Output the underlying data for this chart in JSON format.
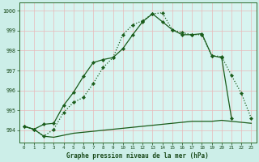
{
  "title": "Graphe pression niveau de la mer (hPa)",
  "background_color": "#cceee8",
  "plot_background": "#d8f4f0",
  "grid_color": "#e8b8b8",
  "xlim": [
    -0.5,
    23.5
  ],
  "ylim": [
    993.4,
    1000.4
  ],
  "yticks": [
    994,
    995,
    996,
    997,
    998,
    999,
    1000
  ],
  "xticks": [
    0,
    1,
    2,
    3,
    4,
    5,
    6,
    7,
    8,
    9,
    10,
    11,
    12,
    13,
    14,
    15,
    16,
    17,
    18,
    19,
    20,
    21,
    22,
    23
  ],
  "line1_x": [
    0,
    1,
    2,
    3,
    4,
    5,
    6,
    7,
    8,
    9,
    10,
    11,
    12,
    13,
    14,
    15,
    16,
    17,
    18,
    19,
    20,
    21,
    22,
    23
  ],
  "line1_y": [
    994.2,
    994.05,
    993.7,
    993.65,
    993.75,
    993.85,
    993.9,
    993.95,
    994.0,
    994.05,
    994.1,
    994.15,
    994.2,
    994.25,
    994.3,
    994.35,
    994.4,
    994.45,
    994.45,
    994.45,
    994.5,
    994.45,
    994.4,
    994.35
  ],
  "line2_x": [
    0,
    1,
    2,
    3,
    4,
    5,
    6,
    7,
    8,
    9,
    10,
    11,
    12,
    13,
    14,
    15,
    16,
    17,
    18,
    19,
    20,
    21
  ],
  "line2_y": [
    994.2,
    994.05,
    994.3,
    994.35,
    995.25,
    995.9,
    996.7,
    997.4,
    997.55,
    997.65,
    998.1,
    998.8,
    999.45,
    999.85,
    999.45,
    999.05,
    998.8,
    998.8,
    998.85,
    997.75,
    997.65,
    994.6
  ],
  "line3_x": [
    0,
    1,
    2,
    3,
    4,
    5,
    6,
    7,
    8,
    9,
    10,
    11,
    12,
    13,
    14,
    15,
    16,
    17,
    18,
    19,
    20,
    21,
    22,
    23
  ],
  "line3_y": [
    994.2,
    994.05,
    993.7,
    994.05,
    994.9,
    995.4,
    995.65,
    996.35,
    997.15,
    997.65,
    998.8,
    999.3,
    999.5,
    999.85,
    999.9,
    999.05,
    998.9,
    998.8,
    998.8,
    997.75,
    997.7,
    996.75,
    995.85,
    994.6
  ],
  "line_color": "#1a5c1a",
  "marker": "D",
  "marker_size": 2.2,
  "line_width": 0.9
}
